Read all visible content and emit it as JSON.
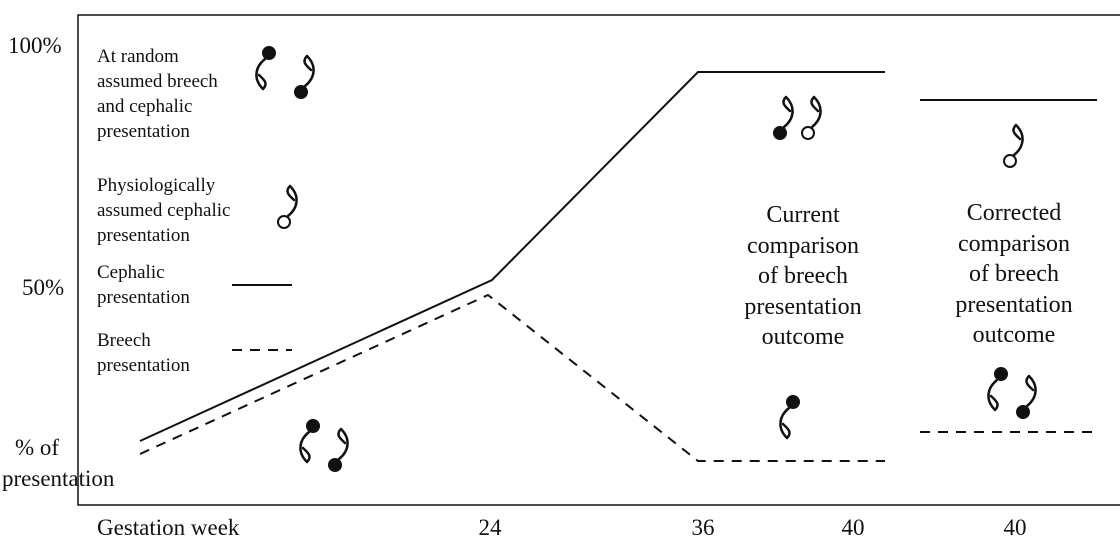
{
  "y_axis": {
    "labels": [
      "100%",
      "50%"
    ],
    "title": [
      "% of",
      "presentation"
    ]
  },
  "x_axis": {
    "title": "Gestation week",
    "labels": [
      "24",
      "36",
      "40",
      "40"
    ]
  },
  "legend": [
    {
      "lines": [
        "At random",
        "assumed breech",
        "and cephalic",
        "presentation"
      ]
    },
    {
      "lines": [
        "Physiologically",
        "assumed cephalic",
        "presentation"
      ]
    },
    {
      "lines": [
        "Cephalic",
        "presentation"
      ]
    },
    {
      "lines": [
        "Breech",
        "presentation"
      ]
    }
  ],
  "annotations": [
    {
      "lines": [
        "Current",
        "comparison",
        "of breech",
        "presentation",
        "outcome"
      ]
    },
    {
      "lines": [
        "Corrected",
        "comparison",
        "of breech",
        "presentation",
        "outcome"
      ]
    }
  ]
}
